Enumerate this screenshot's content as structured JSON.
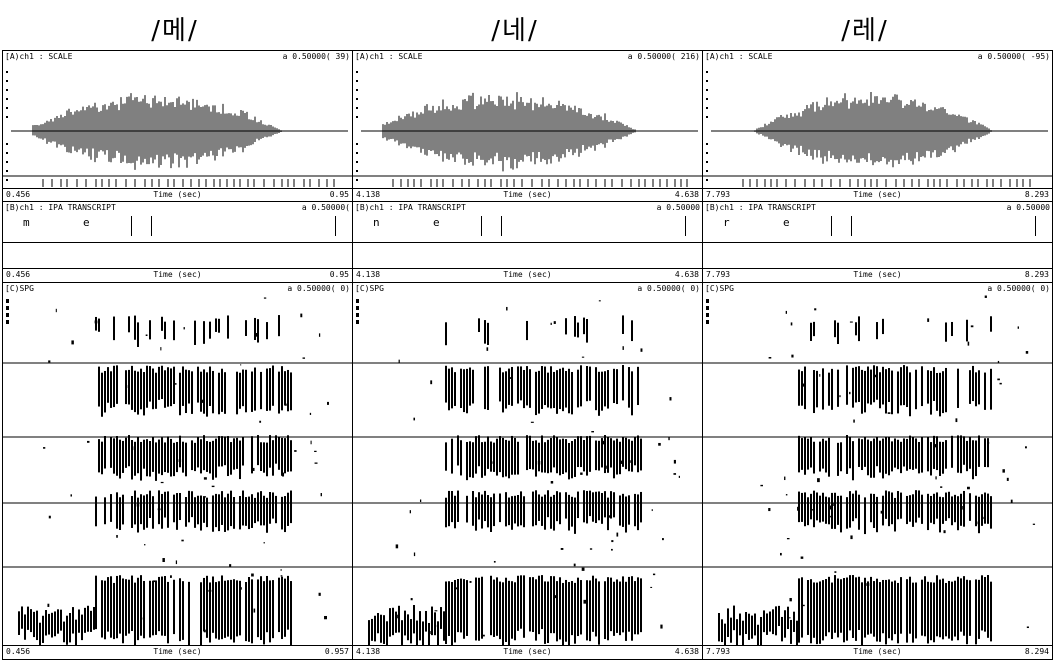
{
  "titles": [
    "/메/",
    "/네/",
    "/레/"
  ],
  "axis_label": "Time (sec)",
  "panels": [
    {
      "id": "me",
      "waveform": {
        "header_left": "[A)ch1 : SCALE",
        "header_right": "a 0.50000(   39)",
        "start": "0.456",
        "end": "0.95"
      },
      "transcript": {
        "header_left": "[B)ch1 : IPA TRANSCRIPT",
        "header_right": "a 0.50000(",
        "segments": [
          "m",
          "e"
        ],
        "start": "0.456",
        "end": "0.95"
      },
      "spectrogram": {
        "header_left": "[C)SPG",
        "header_right": "a 0.50000(   0)",
        "start": "0.456",
        "end": "0.957"
      }
    },
    {
      "id": "ne",
      "waveform": {
        "header_left": "[A)ch1 : SCALE",
        "header_right": "a 0.50000(  216)",
        "start": "4.138",
        "end": "4.638"
      },
      "transcript": {
        "header_left": "[B)ch1 : IPA TRANSCRIPT",
        "header_right": "a 0.50000",
        "segments": [
          "n",
          "e"
        ],
        "start": "4.138",
        "end": "4.638"
      },
      "spectrogram": {
        "header_left": "[C)SPG",
        "header_right": "a 0.50000(   0)",
        "start": "4.138",
        "end": "4.638"
      }
    },
    {
      "id": "re",
      "waveform": {
        "header_left": "[A)ch1 : SCALE",
        "header_right": "a 0.50000(  -95)",
        "start": "7.793",
        "end": "8.293"
      },
      "transcript": {
        "header_left": "[B)ch1 : IPA TRANSCRIPT",
        "header_right": "a 0.50000",
        "segments": [
          "r",
          "e"
        ],
        "start": "7.793",
        "end": "8.293"
      },
      "spectrogram": {
        "header_left": "[C)SPG",
        "header_right": "a 0.50000(   0)",
        "start": "7.793",
        "end": "8.294"
      }
    }
  ]
}
